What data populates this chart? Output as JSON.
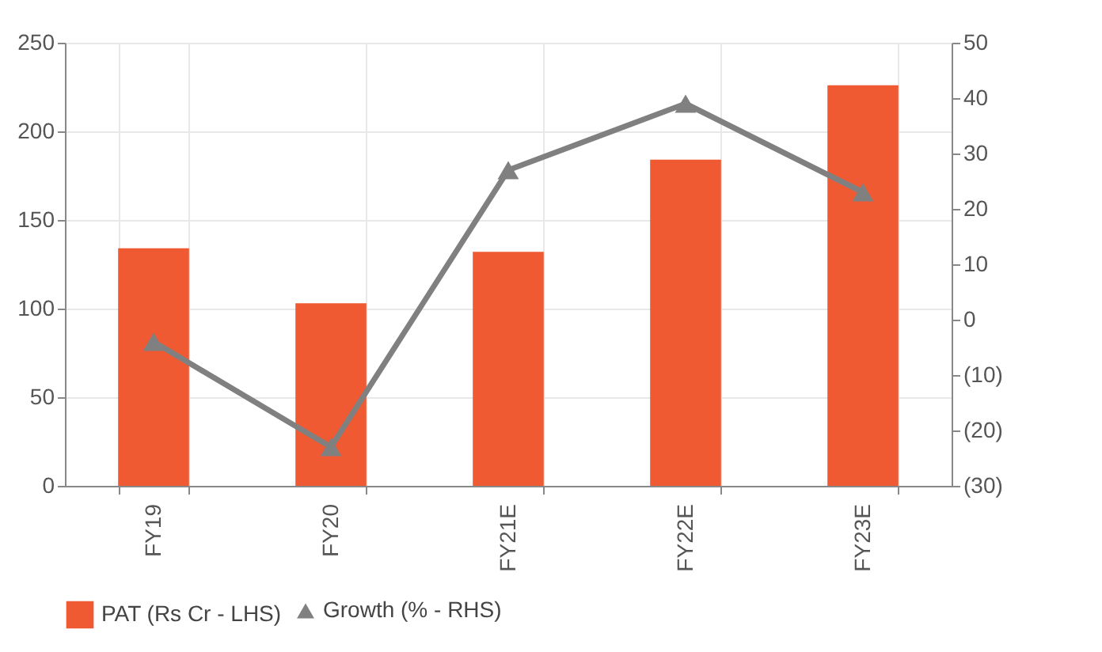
{
  "chart_data": {
    "type": "bar",
    "categories": [
      "FY19",
      "FY20",
      "FY21E",
      "FY22E",
      "FY23E"
    ],
    "series": [
      {
        "name": "PAT (Rs Cr - LHS)",
        "color": "#ef5a32",
        "values": [
          134,
          103,
          132,
          184,
          226
        ]
      },
      {
        "name": "Growth (% - RHS)",
        "type": "line",
        "axis": "y2",
        "color": "#808080",
        "marker": "triangle",
        "values": [
          -4,
          -23,
          27,
          39,
          23
        ]
      }
    ],
    "ylim": [
      0,
      250
    ],
    "yticks": [
      0,
      50,
      100,
      150,
      200,
      250
    ],
    "y2lim": [
      -30,
      50
    ],
    "y2ticks": [
      {
        "value": -30,
        "label": "(30)"
      },
      {
        "value": -20,
        "label": "(20)"
      },
      {
        "value": -10,
        "label": "(10)"
      },
      0,
      10,
      20,
      30,
      40,
      50
    ],
    "grid": true,
    "legend": "bottom"
  }
}
